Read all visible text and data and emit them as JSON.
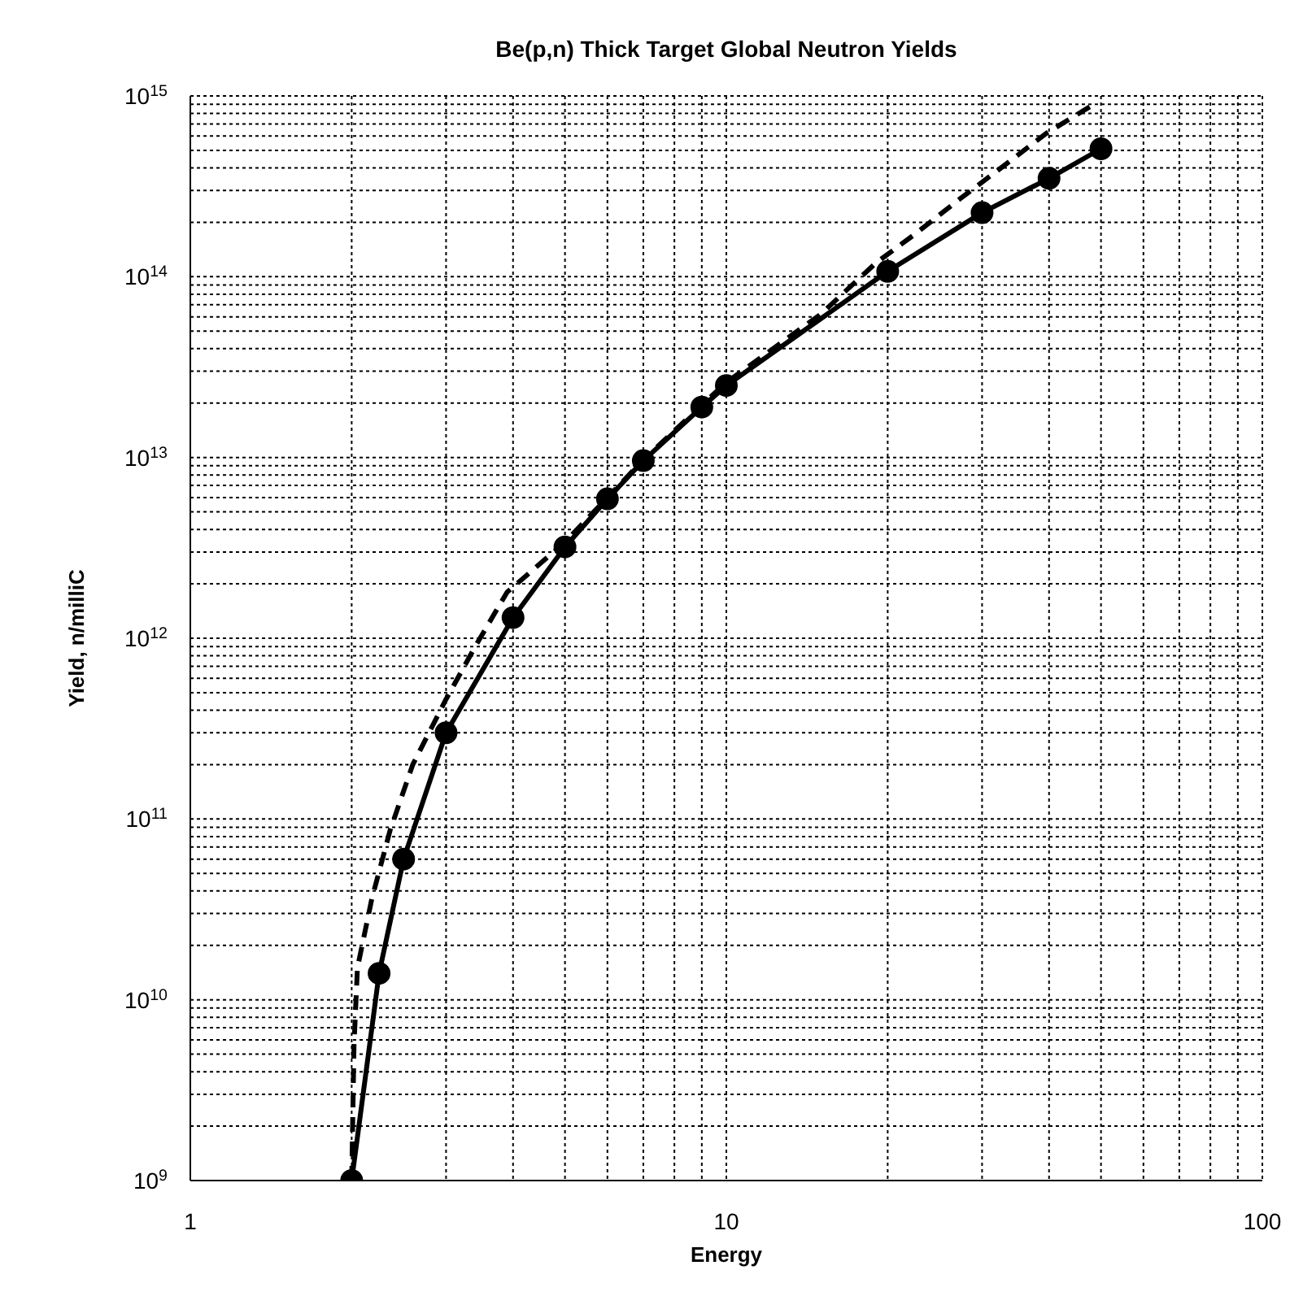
{
  "chart_data": {
    "type": "line",
    "title": "Be(p,n) Thick Target Global Neutron Yields",
    "xlabel": "Energy",
    "ylabel": "Yield, n/milliC",
    "log": "xy",
    "grid": true,
    "xlim": [
      1,
      100
    ],
    "xticks": [
      1,
      10,
      100
    ],
    "ylim": [
      1000000000.0,
      1000000000000000.0
    ],
    "yticks": [
      {
        "value": 1000000000.0,
        "label": "10$^{9}$"
      },
      {
        "value": 10000000000.0,
        "label": "10$^{10}$"
      },
      {
        "value": 100000000000.0,
        "label": "10$^{11}$"
      },
      {
        "value": 1000000000000.0,
        "label": "10$^{12}$"
      },
      {
        "value": 10000000000000.0,
        "label": "10$^{13}$"
      },
      {
        "value": 100000000000000.0,
        "label": "10$^{14}$"
      },
      {
        "value": 1000000000000000.0,
        "label": "10$^{15}$"
      }
    ],
    "series": [
      {
        "color": "#000000",
        "marker": "circle",
        "line_style": "solid",
        "x": [
          2,
          2.25,
          2.5,
          3,
          4,
          5,
          6,
          7,
          9,
          10,
          20,
          30,
          40,
          50
        ],
        "values": [
          1000000000.0,
          14000000000.0,
          60000000000.0,
          300000000000.0,
          1300000000000.0,
          3200000000000.0,
          5900000000000.0,
          9600000000000.0,
          19000000000000.0,
          25000000000000.0,
          107000000000000.0,
          226000000000000.0,
          350000000000000.0,
          510000000000000.0
        ]
      },
      {
        "color": "#000000",
        "marker": "none",
        "line_style": "dashed",
        "x": [
          2,
          2.02,
          2.05,
          2.18,
          2.36,
          2.6,
          3,
          3.4,
          3.9,
          5,
          6,
          7,
          9,
          10,
          15,
          19,
          22.6,
          27.3,
          32,
          39.5,
          48.8
        ],
        "values": [
          1000000000.0,
          5600000000.0,
          15000000000.0,
          36000000000.0,
          87000000000.0,
          200000000000.0,
          460000000000.0,
          900000000000.0,
          1800000000000.0,
          3400000000000.0,
          6000000000000.0,
          9700000000000.0,
          19500000000000.0,
          26000000000000.0,
          62000000000000.0,
          119000000000000.0,
          174000000000000.0,
          270000000000000.0,
          385000000000000.0,
          620000000000000.0,
          910000000000000.0
        ]
      }
    ]
  }
}
